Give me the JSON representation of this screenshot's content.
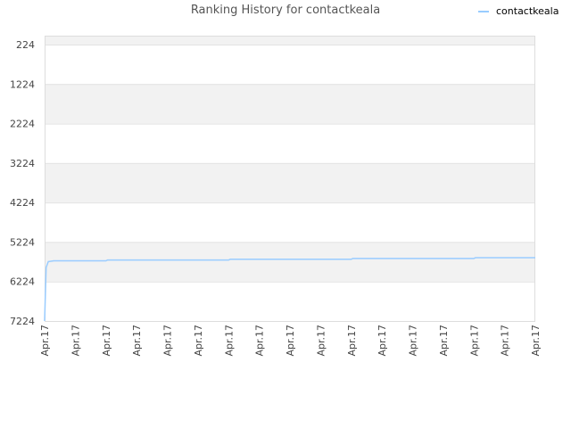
{
  "chart_data": {
    "type": "line",
    "title": "Ranking History for contactkeala",
    "xlabel": "",
    "ylabel": "",
    "y_reversed": true,
    "ylim": [
      224,
      7224
    ],
    "y_ticks": [
      224,
      1224,
      2224,
      3224,
      4224,
      5224,
      6224,
      7224
    ],
    "x_ticks": [
      "Apr.17",
      "Apr.17",
      "Apr.17",
      "Apr.17",
      "Apr.17",
      "Apr.17",
      "Apr.17",
      "Apr.17",
      "Apr.17",
      "Apr.17",
      "Apr.17",
      "Apr.17",
      "Apr.17",
      "Apr.17",
      "Apr.17",
      "Apr.17",
      "Apr.17"
    ],
    "grid": true,
    "legend_position": "top-right",
    "series": [
      {
        "name": "contactkeala",
        "color": "#99ccff",
        "x": [
          0,
          0.05,
          0.12,
          0.3,
          2.0,
          2.05,
          6.0,
          6.05,
          10.0,
          10.05,
          14.0,
          14.05,
          16.0
        ],
        "y": [
          7224,
          5870,
          5720,
          5700,
          5700,
          5680,
          5680,
          5660,
          5660,
          5640,
          5640,
          5620,
          5620
        ]
      }
    ]
  }
}
